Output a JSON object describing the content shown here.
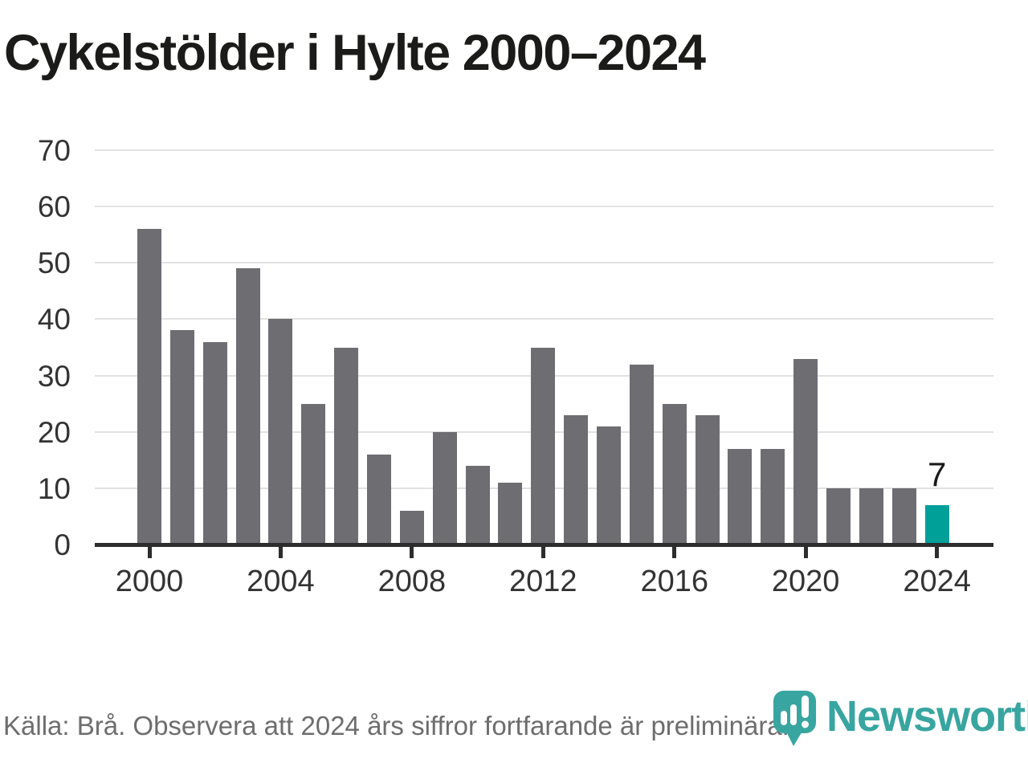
{
  "chart_data": {
    "type": "bar",
    "title": "Cykelstölder i Hylte 2000–2024",
    "x": [
      2000,
      2001,
      2002,
      2003,
      2004,
      2005,
      2006,
      2007,
      2008,
      2009,
      2010,
      2011,
      2012,
      2013,
      2014,
      2015,
      2016,
      2017,
      2018,
      2019,
      2020,
      2021,
      2022,
      2023,
      2024
    ],
    "values": [
      56,
      38,
      36,
      49,
      40,
      25,
      35,
      16,
      6,
      20,
      14,
      11,
      35,
      23,
      21,
      32,
      25,
      23,
      17,
      17,
      33,
      10,
      10,
      10,
      7
    ],
    "highlight_year": 2024,
    "annotation": {
      "year": 2024,
      "label": "7"
    },
    "xticks": [
      2000,
      2004,
      2008,
      2012,
      2016,
      2020,
      2024
    ],
    "yticks": [
      0,
      10,
      20,
      30,
      40,
      50,
      60,
      70
    ],
    "ylim": [
      0,
      70
    ],
    "grid": true,
    "legend_position": "none",
    "colors": {
      "bar": "#6d6d72",
      "highlight": "#00a099",
      "grid": "#e2e2e2",
      "axis": "#2d2d2d",
      "logo": "#38a5a0"
    }
  },
  "footer": {
    "source_text": "Källa: Brå. Observera att 2024 års siffror fortfarande är preliminära."
  },
  "logo": {
    "text": "Newsworthy"
  }
}
